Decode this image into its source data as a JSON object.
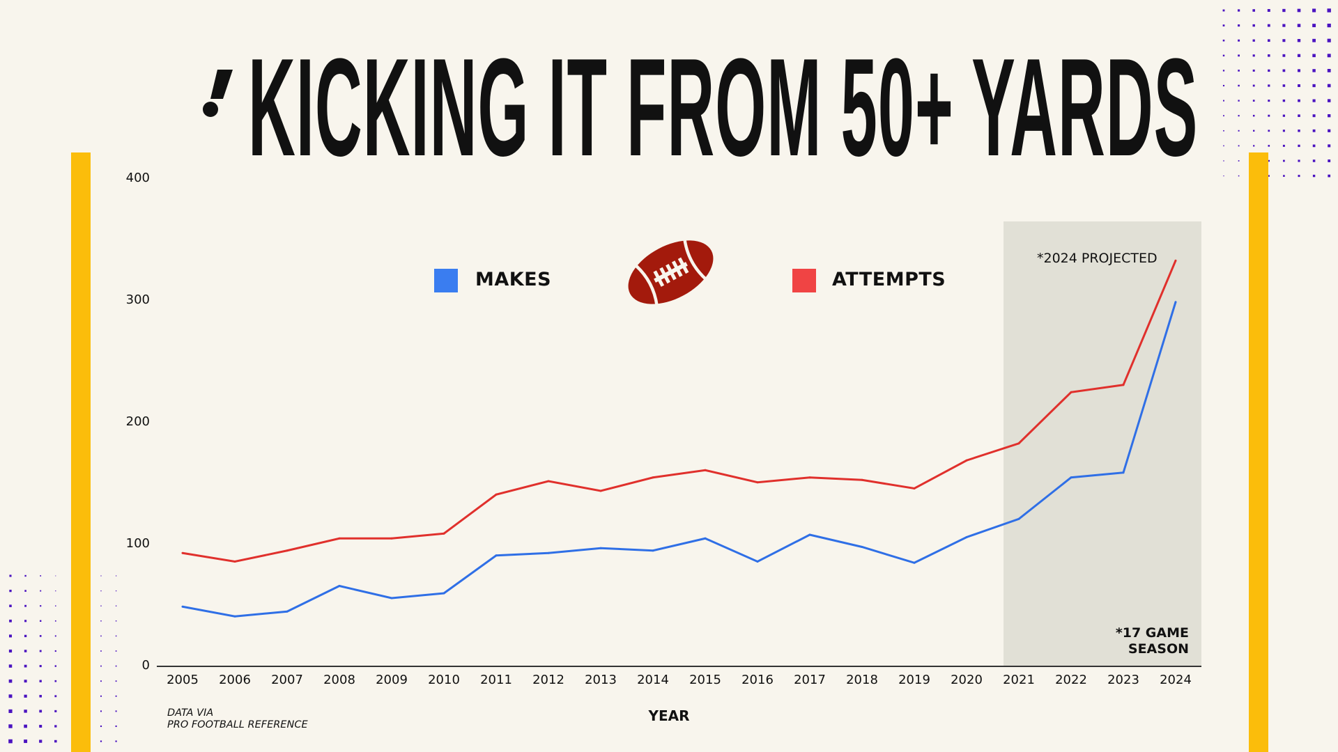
{
  "title": "KICKING IT FROM 50+ YARDS",
  "logo": {
    "icon": "slanted-exclamation-logo",
    "text": ""
  },
  "colors": {
    "background": "#f8f5ed",
    "makes": "#2f6fe6",
    "attempts": "#e0302c",
    "legend_makes": "#3a7df0",
    "legend_attempts": "#f04444",
    "accent_bar": "#fbbd0b",
    "dots": "#4a12c0",
    "shade": "#e1e0d6",
    "football": "#a31a0c"
  },
  "legend": {
    "items": [
      {
        "label": "MAKES",
        "color": "#3a7df0"
      },
      {
        "label": "ATTEMPTS",
        "color": "#f04444"
      }
    ],
    "icon": "football-icon"
  },
  "annotations": {
    "projected": "*2024 PROJECTED",
    "season_line1": "*17 GAME",
    "season_line2": "SEASON"
  },
  "source": {
    "line1": "DATA VIA",
    "line2": "PRO FOOTBALL REFERENCE"
  },
  "chart_data": {
    "type": "line",
    "title": "KICKING IT FROM 50+ YARDS",
    "xlabel": "YEAR",
    "ylabel": "",
    "x": [
      2005,
      2006,
      2007,
      2008,
      2009,
      2010,
      2011,
      2012,
      2013,
      2014,
      2015,
      2016,
      2017,
      2018,
      2019,
      2020,
      2021,
      2022,
      2023,
      2024
    ],
    "xtick_labels": [
      "2005",
      "2006",
      "2007",
      "2008",
      "2009",
      "2010",
      "2011",
      "2012",
      "2013",
      "2014",
      "2015",
      "2016",
      "2017",
      "2018",
      "2019",
      "2020",
      "2021",
      "2022",
      "2023",
      "2024"
    ],
    "ylim": [
      0,
      400
    ],
    "yticks": [
      0,
      100,
      200,
      300,
      400
    ],
    "ytick_labels": [
      "0",
      "100",
      "200",
      "300",
      "400"
    ],
    "grid": false,
    "legend_position": "top-center",
    "highlight_range": [
      2021,
      2024
    ],
    "series": [
      {
        "name": "MAKES",
        "color": "#2f6fe6",
        "values": [
          49,
          41,
          45,
          66,
          56,
          60,
          91,
          93,
          97,
          95,
          105,
          86,
          108,
          98,
          85,
          106,
          121,
          155,
          159,
          299
        ]
      },
      {
        "name": "ATTEMPTS",
        "color": "#e0302c",
        "values": [
          93,
          86,
          95,
          105,
          105,
          109,
          141,
          152,
          144,
          155,
          161,
          151,
          155,
          153,
          146,
          169,
          183,
          225,
          231,
          333
        ]
      }
    ]
  }
}
